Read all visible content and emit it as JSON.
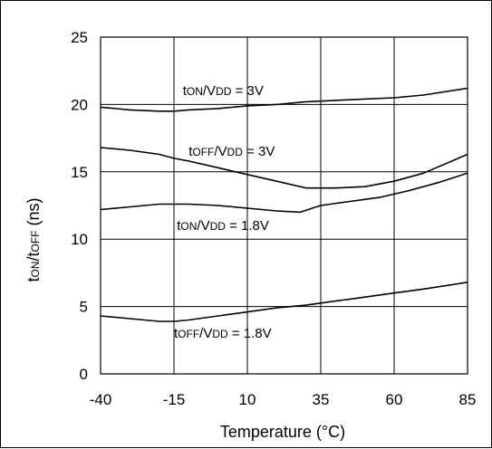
{
  "chart_data": {
    "type": "line",
    "title": "",
    "xlabel": "Temperature (°C)",
    "ylabel": {
      "pre": "t",
      "sub1": "ON",
      "mid": "/t",
      "sub2": "OFF",
      "post": " (ns)"
    },
    "xlim": [
      -40,
      85
    ],
    "ylim": [
      0,
      25
    ],
    "xticks": [
      -40,
      -15,
      10,
      35,
      60,
      85
    ],
    "yticks": [
      0,
      5,
      10,
      15,
      20,
      25
    ],
    "grid": true,
    "legend": "none",
    "series": [
      {
        "label": {
          "pre": "t",
          "sub": "ON",
          "mid": "/V",
          "sub2": "DD",
          "post": " = 3V"
        },
        "label_at": [
          -12,
          20.7
        ],
        "x": [
          -40,
          -30,
          -20,
          -15,
          -10,
          0,
          10,
          20,
          25,
          30,
          40,
          50,
          60,
          70,
          85
        ],
        "y": [
          19.8,
          19.6,
          19.5,
          19.5,
          19.6,
          19.7,
          19.9,
          20.0,
          20.1,
          20.2,
          20.3,
          20.4,
          20.5,
          20.7,
          21.2
        ]
      },
      {
        "label": {
          "pre": "t",
          "sub": "OFF",
          "mid": "/V",
          "sub2": "DD",
          "post": " = 3V"
        },
        "label_at": [
          -10,
          16.2
        ],
        "x": [
          -40,
          -30,
          -20,
          -15,
          -10,
          0,
          10,
          20,
          30,
          40,
          50,
          60,
          70,
          85
        ],
        "y": [
          16.8,
          16.6,
          16.3,
          16.0,
          15.8,
          15.3,
          14.8,
          14.3,
          13.8,
          13.8,
          13.9,
          14.3,
          14.9,
          16.3
        ]
      },
      {
        "label": {
          "pre": "t",
          "sub": "ON",
          "mid": "/V",
          "sub2": "DD",
          "post": " = 1.8V"
        },
        "label_at": [
          -14,
          10.7
        ],
        "x": [
          -40,
          -30,
          -20,
          -15,
          -10,
          0,
          10,
          20,
          28,
          35,
          45,
          55,
          65,
          75,
          85
        ],
        "y": [
          12.2,
          12.4,
          12.6,
          12.6,
          12.6,
          12.5,
          12.3,
          12.1,
          12.0,
          12.5,
          12.8,
          13.1,
          13.6,
          14.2,
          14.9
        ]
      },
      {
        "label": {
          "pre": "t",
          "sub": "OFF",
          "mid": "/V",
          "sub2": "DD",
          "post": " = 1.8V"
        },
        "label_at": [
          -15,
          2.7
        ],
        "x": [
          -40,
          -30,
          -20,
          -15,
          -10,
          0,
          10,
          20,
          30,
          40,
          50,
          60,
          70,
          85
        ],
        "y": [
          4.3,
          4.1,
          3.9,
          3.9,
          4.0,
          4.3,
          4.6,
          4.9,
          5.1,
          5.4,
          5.7,
          6.0,
          6.3,
          6.8
        ]
      }
    ]
  }
}
